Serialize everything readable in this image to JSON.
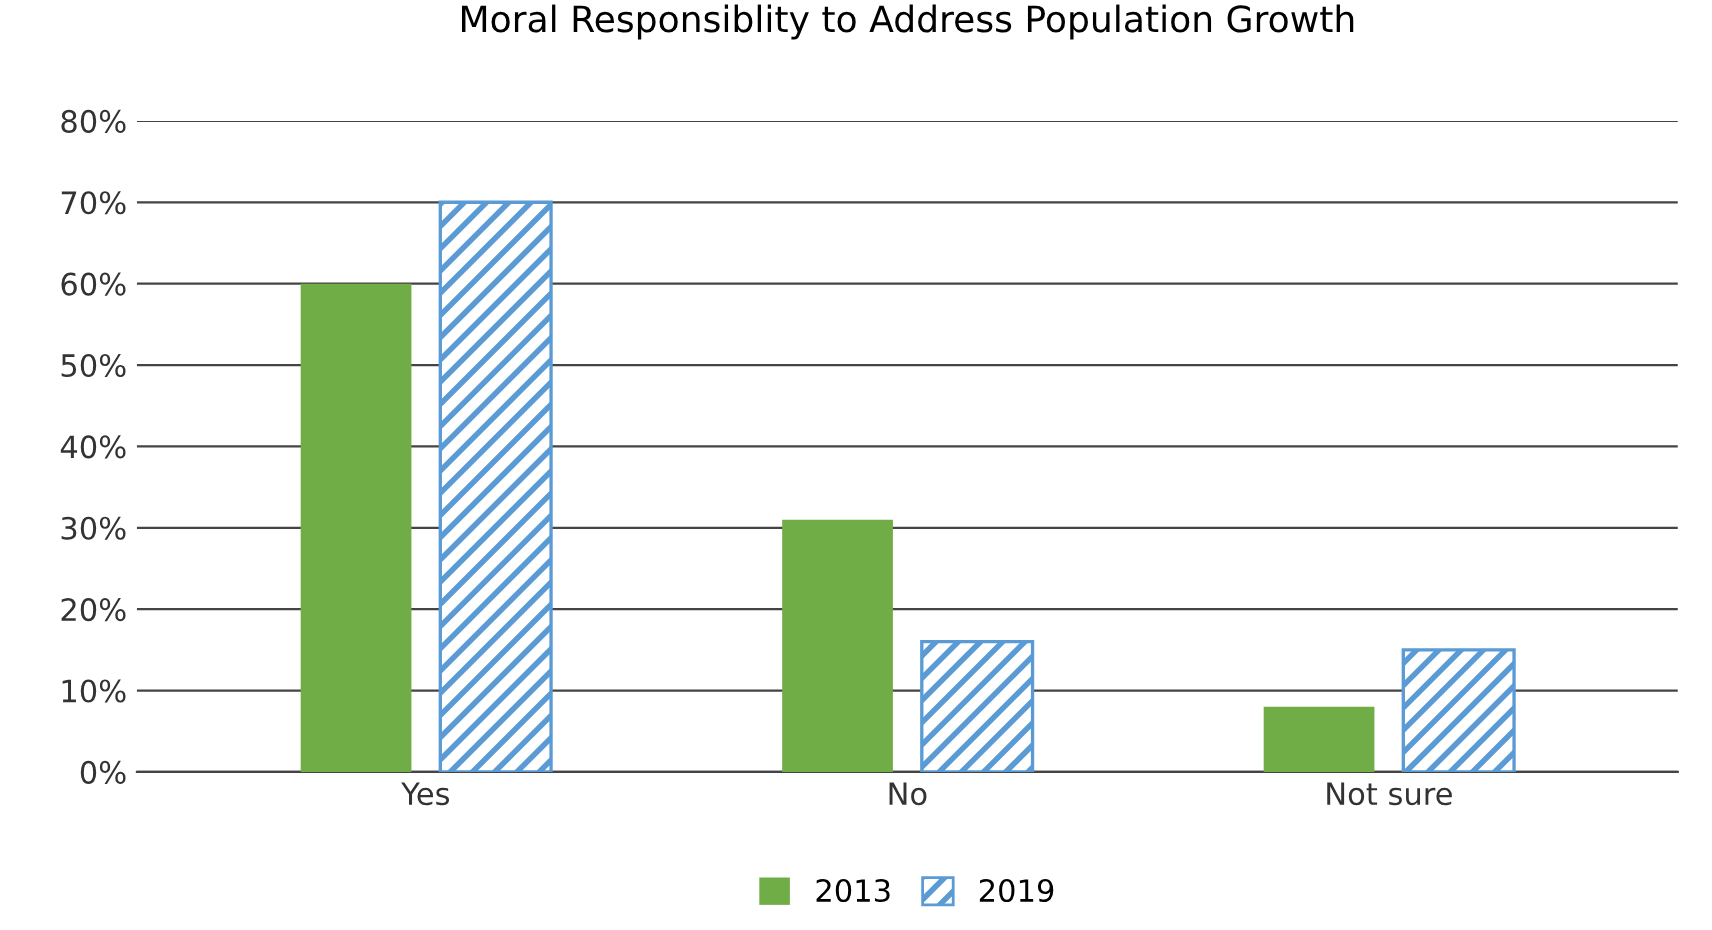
{
  "chart_data": {
    "type": "bar",
    "title": "Moral Responsiblity to Address Population Growth",
    "categories": [
      "Yes",
      "No",
      "Not sure"
    ],
    "series": [
      {
        "name": "2013",
        "color": "#70ad47",
        "values": [
          60,
          31,
          8
        ]
      },
      {
        "name": "2019",
        "color": "#5b9bd5",
        "values": [
          70,
          16,
          15
        ]
      }
    ],
    "ylim": [
      0,
      80
    ],
    "yticks": [
      {
        "value": 0,
        "label": "0%"
      },
      {
        "value": 10,
        "label": "10%"
      },
      {
        "value": 20,
        "label": "20%"
      },
      {
        "value": 30,
        "label": "30%"
      },
      {
        "value": 40,
        "label": "40%"
      },
      {
        "value": 50,
        "label": "50%"
      },
      {
        "value": 60,
        "label": "60%"
      },
      {
        "value": 70,
        "label": "70%"
      },
      {
        "value": 80,
        "label": "80%"
      }
    ],
    "grid": "y",
    "legend": "bottom"
  }
}
